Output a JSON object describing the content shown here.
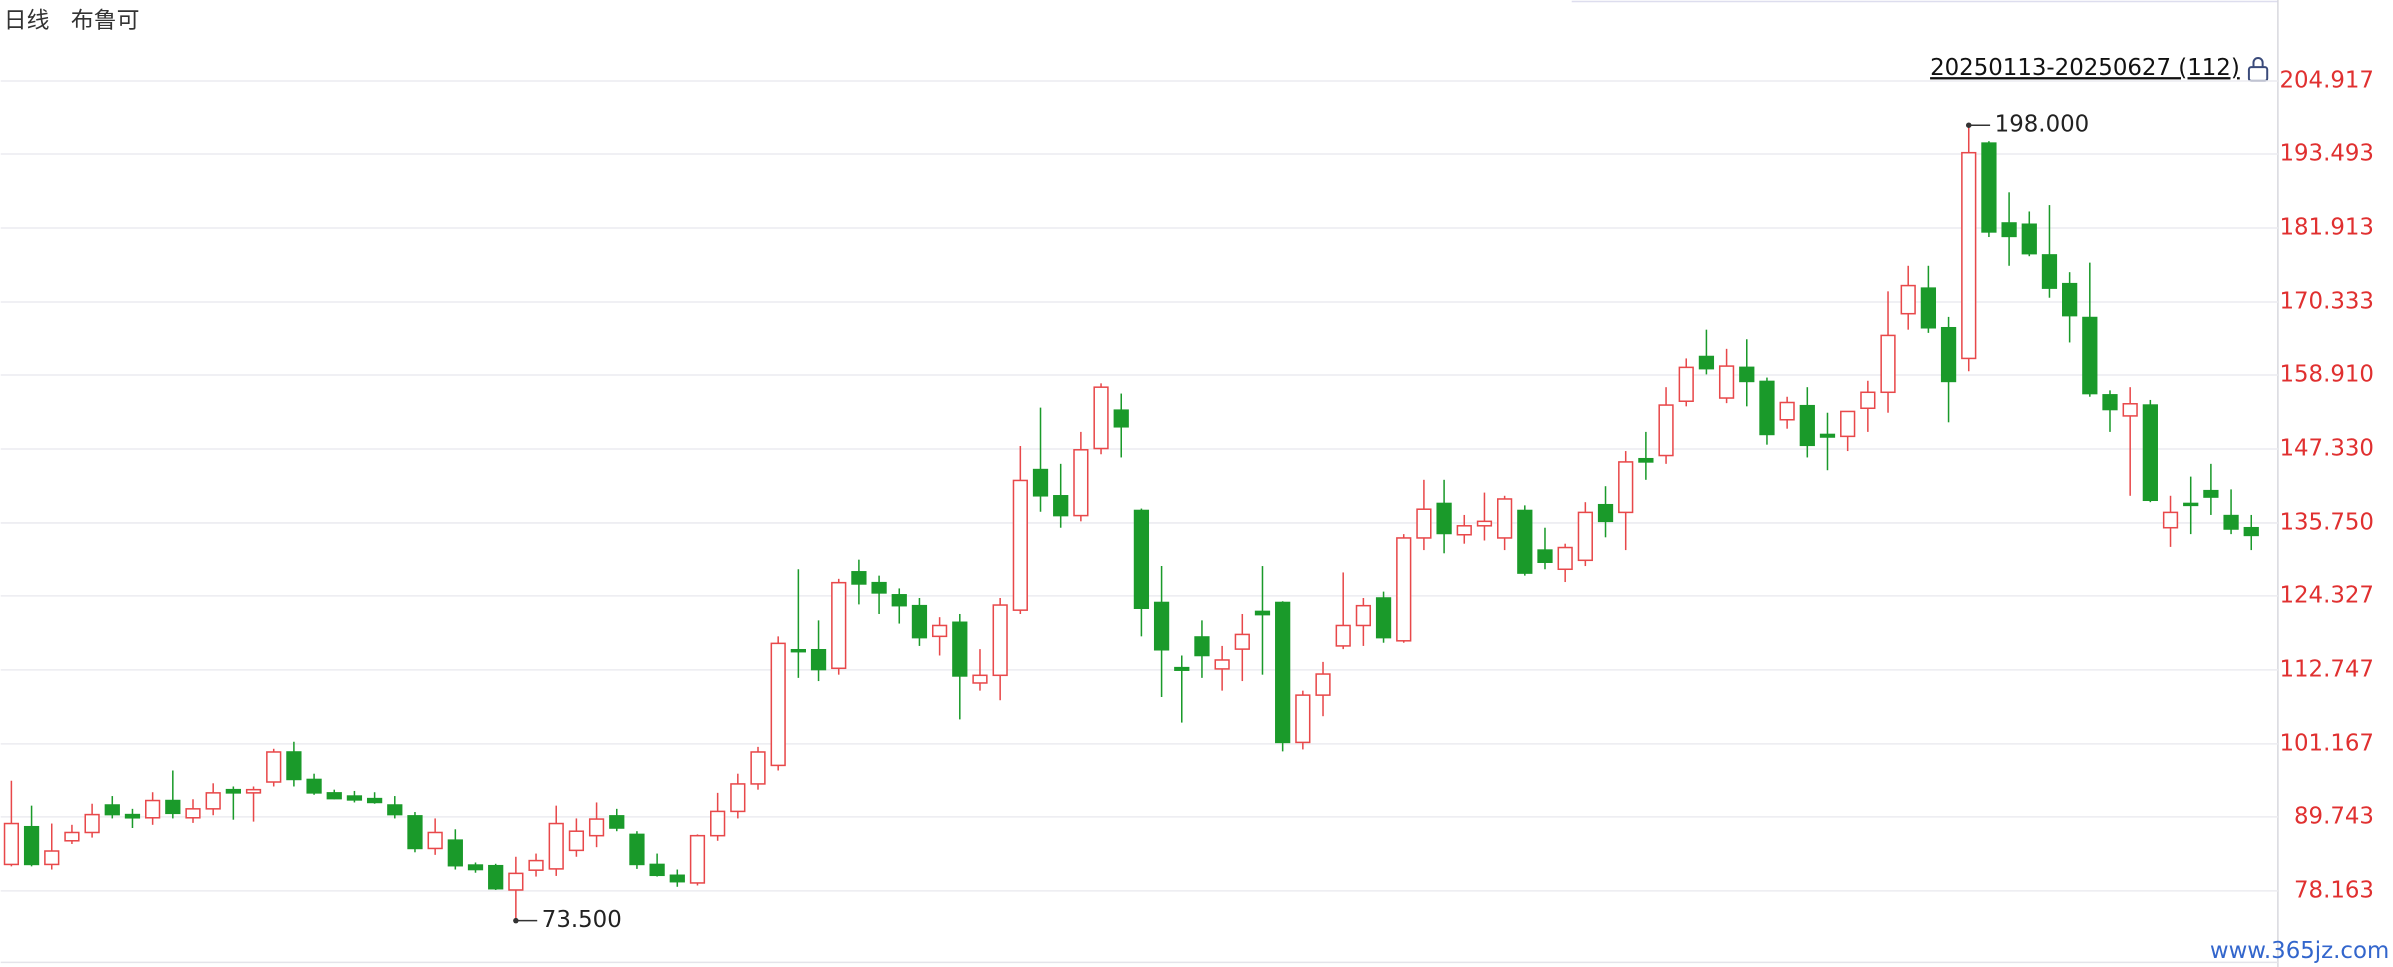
{
  "header": {
    "period": "日线",
    "name": "布鲁可"
  },
  "chart_data": {
    "type": "candlestick",
    "range_label": "20250113-20250627 (112)",
    "up_color": "#e8484a",
    "down_color": "#1a9a2a",
    "grid": true,
    "ylim": [
      67.2,
      217.6
    ],
    "yticks": [
      204.917,
      193.493,
      181.913,
      170.333,
      {
        "value": 158.91,
        "label": "158.910"
      },
      {
        "value": 147.33,
        "label": "147.330"
      },
      {
        "value": 135.75,
        "label": "135.750"
      },
      124.327,
      112.747,
      101.167,
      89.743,
      78.163
    ],
    "max_label": {
      "value": 198,
      "label": "198.000"
    },
    "min_label": {
      "value": 73.5,
      "label": "73.500"
    },
    "open": [
      82.3,
      88.2,
      82.3,
      86.0,
      87.3,
      91.6,
      90.1,
      89.6,
      92.3,
      89.6,
      91.0,
      94.0,
      93.5,
      95.2,
      99.9,
      95.6,
      93.5,
      93.0,
      92.6,
      91.6,
      89.9,
      84.8,
      86.1,
      82.2,
      82.1,
      78.3,
      81.4,
      81.6,
      84.5,
      86.8,
      89.9,
      87.0,
      82.3,
      80.6,
      79.4,
      86.8,
      90.6,
      94.9,
      97.8,
      115.9,
      115.9,
      113.0,
      128.1,
      126.4,
      124.5,
      122.8,
      118.0,
      120.2,
      110.7,
      111.9,
      122.1,
      144.1,
      140.0,
      136.9,
      147.4,
      153.4,
      137.7,
      123.3,
      113.1,
      117.9,
      112.9,
      116.0,
      121.9,
      123.3,
      101.4,
      108.8,
      116.5,
      119.7,
      124.0,
      117.3,
      133.4,
      138.8,
      133.9,
      135.3,
      133.4,
      137.7,
      131.5,
      128.5,
      129.9,
      138.6,
      137.4,
      145.8,
      146.3,
      154.8,
      161.8,
      155.3,
      160.1,
      157.9,
      151.9,
      154.1,
      149.6,
      149.3,
      153.7,
      156.2,
      168.5,
      172.5,
      166.3,
      161.5,
      195.2,
      182.7,
      182.5,
      177.7,
      173.2,
      167.9,
      155.8,
      152.5,
      154.2,
      135.0,
      138.8,
      140.8,
      136.9,
      135.0
    ],
    "high": [
      95.4,
      91.5,
      88.7,
      88.5,
      91.8,
      93.0,
      91.0,
      93.6,
      97.0,
      92.5,
      95.0,
      94.5,
      94.5,
      100.4,
      101.5,
      96.5,
      94.0,
      93.8,
      93.6,
      93.0,
      90.5,
      89.5,
      87.8,
      82.6,
      82.4,
      83.5,
      84.0,
      91.5,
      89.5,
      92.0,
      91.0,
      87.5,
      84.0,
      81.5,
      87.0,
      93.5,
      96.5,
      100.7,
      118.0,
      128.5,
      120.5,
      127.0,
      130.0,
      127.5,
      125.5,
      124.0,
      121.0,
      121.5,
      116.0,
      124.0,
      147.8,
      153.8,
      145.0,
      150.0,
      157.6,
      156.0,
      138.0,
      129.0,
      115.0,
      120.5,
      116.5,
      121.5,
      129.0,
      123.5,
      109.5,
      114.0,
      128.0,
      124.0,
      125.0,
      134.0,
      142.5,
      142.5,
      137.0,
      140.5,
      140.0,
      138.5,
      135.0,
      132.5,
      139.0,
      141.5,
      147.0,
      150.0,
      157.0,
      161.5,
      166.0,
      163.0,
      164.5,
      158.5,
      155.5,
      157.0,
      153.0,
      152.0,
      158.0,
      172.0,
      176.0,
      176.0,
      168.0,
      198.0,
      195.5,
      187.5,
      184.5,
      185.5,
      175.0,
      176.5,
      156.5,
      157.0,
      155.0,
      140.0,
      143.0,
      145.0,
      141.0,
      137.0
    ],
    "low": [
      82.0,
      82.0,
      81.5,
      85.5,
      86.5,
      89.5,
      88.0,
      88.5,
      89.5,
      88.8,
      90.0,
      89.3,
      89.0,
      94.5,
      94.5,
      93.2,
      92.5,
      92.0,
      91.8,
      89.5,
      84.2,
      83.8,
      81.5,
      81.0,
      78.3,
      73.5,
      80.4,
      80.5,
      83.5,
      85.0,
      87.5,
      81.6,
      80.4,
      78.8,
      79.0,
      86.0,
      89.5,
      94.0,
      97.0,
      111.5,
      111.0,
      112.0,
      123.0,
      121.5,
      120.0,
      116.5,
      115.0,
      105.0,
      109.5,
      108.0,
      121.5,
      137.5,
      135.0,
      136.0,
      146.5,
      146.0,
      118.0,
      108.5,
      104.5,
      111.5,
      109.5,
      111.0,
      112.0,
      100.0,
      100.3,
      105.5,
      116.0,
      116.5,
      117.0,
      117.0,
      131.5,
      131.0,
      132.5,
      133.0,
      131.5,
      127.5,
      128.5,
      126.5,
      129.0,
      133.5,
      131.5,
      142.5,
      145.0,
      154.0,
      159.0,
      154.5,
      154.0,
      148.0,
      150.5,
      146.0,
      144.0,
      147.0,
      150.0,
      153.0,
      166.0,
      165.5,
      151.5,
      159.5,
      180.5,
      176.0,
      177.5,
      171.0,
      164.0,
      155.5,
      150.0,
      140.0,
      139.0,
      132.0,
      134.0,
      137.0,
      134.0,
      131.5
    ],
    "close": [
      88.7,
      82.3,
      84.4,
      87.3,
      90.1,
      90.1,
      89.6,
      92.3,
      90.3,
      91.0,
      93.5,
      93.5,
      94.0,
      99.9,
      95.6,
      93.5,
      92.6,
      92.4,
      92.0,
      90.1,
      84.8,
      87.3,
      82.1,
      81.5,
      78.5,
      80.9,
      82.9,
      88.7,
      87.5,
      89.4,
      88.0,
      82.3,
      80.6,
      79.6,
      86.8,
      90.6,
      94.9,
      99.9,
      116.9,
      115.6,
      112.8,
      126.4,
      126.2,
      124.8,
      122.8,
      117.8,
      119.7,
      111.8,
      111.9,
      122.9,
      142.4,
      140.0,
      136.9,
      147.2,
      157.0,
      150.8,
      122.4,
      115.9,
      112.7,
      115.0,
      114.3,
      118.3,
      121.4,
      101.4,
      108.8,
      112.1,
      119.7,
      122.8,
      117.8,
      133.4,
      137.9,
      134.1,
      135.3,
      136.0,
      139.5,
      127.9,
      129.6,
      131.9,
      137.4,
      136.0,
      145.3,
      145.3,
      154.2,
      160.1,
      159.9,
      160.3,
      157.9,
      149.6,
      154.6,
      147.9,
      149.2,
      153.2,
      156.2,
      165.1,
      172.9,
      166.3,
      157.9,
      193.7,
      181.3,
      180.6,
      177.9,
      172.5,
      168.2,
      156.0,
      153.5,
      154.4,
      139.3,
      137.4,
      138.5,
      139.8,
      134.8,
      133.8
    ]
  },
  "watermark": "www.365jz.com"
}
